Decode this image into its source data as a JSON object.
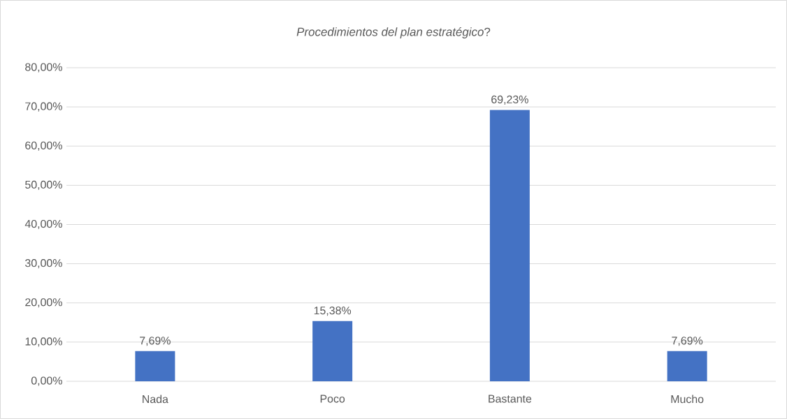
{
  "chart_data": {
    "type": "bar",
    "title": "*Procedimientos del plan estratégico*?",
    "categories": [
      "Nada",
      "Poco",
      "Bastante",
      "Mucho"
    ],
    "values": [
      7.69,
      15.38,
      69.23,
      7.69
    ],
    "value_labels": [
      "7,69%",
      "15,38%",
      "69,23%",
      "7,69%"
    ],
    "color": "#4472c4",
    "ylim": [
      0,
      80
    ],
    "yticks": [
      {
        "value": 0,
        "label": "0,00%"
      },
      {
        "value": 10,
        "label": "10,00%"
      },
      {
        "value": 20,
        "label": "20,00%"
      },
      {
        "value": 30,
        "label": "30,00%"
      },
      {
        "value": 40,
        "label": "40,00%"
      },
      {
        "value": 50,
        "label": "50,00%"
      },
      {
        "value": 60,
        "label": "60,00%"
      },
      {
        "value": 70,
        "label": "70,00%"
      },
      {
        "value": 80,
        "label": "80,00%"
      }
    ],
    "grid": "y"
  }
}
